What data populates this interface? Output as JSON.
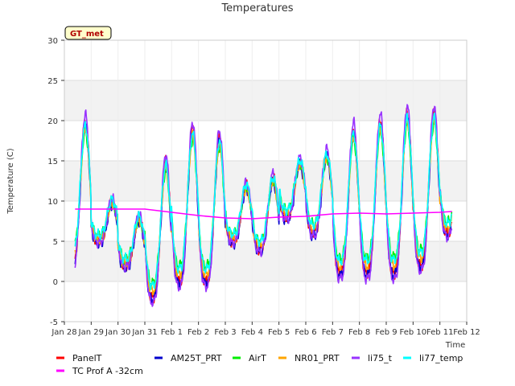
{
  "chart_data": {
    "type": "line",
    "title": "Temperatures",
    "xlabel": "Time",
    "ylabel": "Temperature (C)",
    "badge": "GT_met",
    "ylim": [
      -5,
      30
    ],
    "yticks": [
      -5,
      0,
      5,
      10,
      15,
      20,
      25,
      30
    ],
    "xlim": [
      0,
      15
    ],
    "xticks": [
      {
        "x": 0,
        "label": "Jan 28"
      },
      {
        "x": 1,
        "label": "Jan 29"
      },
      {
        "x": 2,
        "label": "Jan 30"
      },
      {
        "x": 3,
        "label": "Jan 31"
      },
      {
        "x": 4,
        "label": "Feb 1"
      },
      {
        "x": 5,
        "label": "Feb 2"
      },
      {
        "x": 6,
        "label": "Feb 3"
      },
      {
        "x": 7,
        "label": "Feb 4"
      },
      {
        "x": 8,
        "label": "Feb 5"
      },
      {
        "x": 9,
        "label": "Feb 6"
      },
      {
        "x": 10,
        "label": "Feb 7"
      },
      {
        "x": 11,
        "label": "Feb 8"
      },
      {
        "x": 12,
        "label": "Feb 9"
      },
      {
        "x": 13,
        "label": "Feb 10"
      },
      {
        "x": 14,
        "label": "Feb 11"
      },
      {
        "x": 15,
        "label": "Feb 12"
      }
    ],
    "grid": true,
    "legend_position": "bottom",
    "daily_profile": {
      "days": [
        0,
        1,
        2,
        3,
        4,
        5,
        6,
        7,
        8,
        9,
        10,
        11,
        12,
        13,
        14
      ],
      "daily_min": [
        2,
        5,
        2,
        -2,
        0,
        0,
        5,
        4,
        8,
        6,
        1,
        1,
        1,
        2,
        6
      ],
      "daily_max": [
        20,
        10,
        8,
        15,
        19,
        18,
        12,
        13,
        15,
        16,
        19,
        20,
        21,
        21,
        19
      ],
      "end_x": 14.45
    },
    "series": [
      {
        "name": "PanelT",
        "color": "#ff0000",
        "amp_scale": 1.0,
        "offset": 0.0
      },
      {
        "name": "AM25T_PRT",
        "color": "#0000cc",
        "amp_scale": 0.97,
        "offset": -0.4
      },
      {
        "name": "AirT",
        "color": "#00ee00",
        "amp_scale": 0.82,
        "offset": 0.3
      },
      {
        "name": "NR01_PRT",
        "color": "#ffa500",
        "amp_scale": 0.9,
        "offset": 0.0
      },
      {
        "name": "li75_t",
        "color": "#9933ff",
        "amp_scale": 1.08,
        "offset": 0.1
      },
      {
        "name": "li77_temp",
        "color": "#00ffff",
        "amp_scale": 0.88,
        "offset": 0.5
      },
      {
        "name": "TC Prof A -32cm",
        "color": "#ff00ff",
        "profile": [
          {
            "x": 0,
            "y": 9.0
          },
          {
            "x": 3,
            "y": 9.0
          },
          {
            "x": 4,
            "y": 8.6
          },
          {
            "x": 5,
            "y": 8.2
          },
          {
            "x": 6,
            "y": 7.9
          },
          {
            "x": 7,
            "y": 7.8
          },
          {
            "x": 8,
            "y": 8.0
          },
          {
            "x": 9,
            "y": 8.1
          },
          {
            "x": 10,
            "y": 8.4
          },
          {
            "x": 11,
            "y": 8.5
          },
          {
            "x": 12,
            "y": 8.4
          },
          {
            "x": 13,
            "y": 8.5
          },
          {
            "x": 14,
            "y": 8.6
          },
          {
            "x": 14.45,
            "y": 8.7
          }
        ]
      }
    ],
    "legend": [
      {
        "name": "PanelT",
        "color": "#ff0000"
      },
      {
        "name": "AM25T_PRT",
        "color": "#0000cc"
      },
      {
        "name": "AirT",
        "color": "#00ee00"
      },
      {
        "name": "NR01_PRT",
        "color": "#ffa500"
      },
      {
        "name": "li75_t",
        "color": "#9933ff"
      },
      {
        "name": "li77_temp",
        "color": "#00ffff"
      },
      {
        "name": "TC Prof A -32cm",
        "color": "#ff00ff"
      }
    ]
  }
}
